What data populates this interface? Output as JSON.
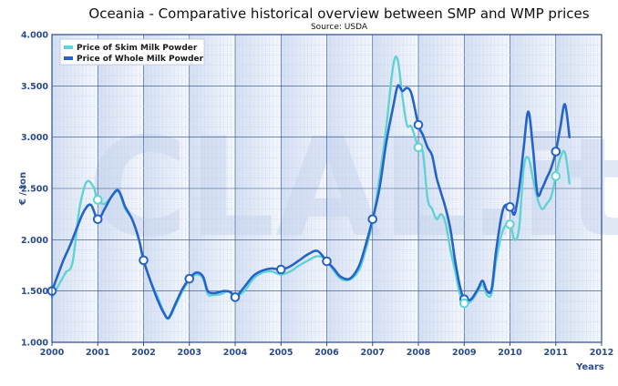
{
  "chart_data": {
    "type": "line",
    "title": "Oceania - Comparative historical overview between SMP and WMP prices",
    "subtitle": "Source: USDA",
    "xlabel": "Years",
    "ylabel": "€ / ton",
    "watermark": "CLAL.it",
    "xlim": [
      2000,
      2012
    ],
    "ylim": [
      1000,
      4000
    ],
    "x_ticks": [
      "2000",
      "2001",
      "2002",
      "2003",
      "2004",
      "2005",
      "2006",
      "2007",
      "2008",
      "2009",
      "2010",
      "2011",
      "2012"
    ],
    "y_ticks": [
      "1.000",
      "1.500",
      "2.000",
      "2.500",
      "3.000",
      "3.500",
      "4.000"
    ],
    "grid": true,
    "legend_position": "top-left",
    "series": [
      {
        "name": "Price of Skim Milk Powder",
        "color": "#5fd3d3",
        "points": [
          [
            2000.0,
            1440
          ],
          [
            2000.15,
            1560
          ],
          [
            2000.3,
            1680
          ],
          [
            2000.45,
            1780
          ],
          [
            2000.6,
            2300
          ],
          [
            2000.75,
            2560
          ],
          [
            2000.9,
            2520
          ],
          [
            2001.0,
            2390
          ],
          [
            2001.15,
            2350
          ],
          [
            2001.3,
            2420
          ],
          [
            2001.45,
            2470
          ],
          [
            2001.6,
            2300
          ],
          [
            2001.75,
            2200
          ],
          [
            2001.9,
            2000
          ],
          [
            2002.0,
            1800
          ],
          [
            2002.15,
            1600
          ],
          [
            2002.3,
            1450
          ],
          [
            2002.45,
            1290
          ],
          [
            2002.55,
            1230
          ],
          [
            2002.7,
            1360
          ],
          [
            2002.85,
            1500
          ],
          [
            2003.0,
            1600
          ],
          [
            2003.15,
            1660
          ],
          [
            2003.3,
            1620
          ],
          [
            2003.4,
            1470
          ],
          [
            2003.5,
            1460
          ],
          [
            2003.7,
            1470
          ],
          [
            2003.85,
            1500
          ],
          [
            2004.0,
            1440
          ],
          [
            2004.2,
            1500
          ],
          [
            2004.4,
            1620
          ],
          [
            2004.6,
            1680
          ],
          [
            2004.8,
            1690
          ],
          [
            2005.0,
            1660
          ],
          [
            2005.2,
            1690
          ],
          [
            2005.4,
            1750
          ],
          [
            2005.6,
            1800
          ],
          [
            2005.8,
            1840
          ],
          [
            2006.0,
            1800
          ],
          [
            2006.15,
            1700
          ],
          [
            2006.3,
            1620
          ],
          [
            2006.5,
            1610
          ],
          [
            2006.7,
            1700
          ],
          [
            2006.85,
            1900
          ],
          [
            2007.0,
            2180
          ],
          [
            2007.15,
            2600
          ],
          [
            2007.3,
            3100
          ],
          [
            2007.45,
            3700
          ],
          [
            2007.55,
            3750
          ],
          [
            2007.65,
            3400
          ],
          [
            2007.75,
            3120
          ],
          [
            2007.85,
            3100
          ],
          [
            2008.0,
            2900
          ],
          [
            2008.1,
            2850
          ],
          [
            2008.2,
            2400
          ],
          [
            2008.3,
            2300
          ],
          [
            2008.4,
            2200
          ],
          [
            2008.5,
            2250
          ],
          [
            2008.6,
            2150
          ],
          [
            2008.7,
            1900
          ],
          [
            2008.8,
            1700
          ],
          [
            2008.9,
            1480
          ],
          [
            2009.0,
            1380
          ],
          [
            2009.15,
            1400
          ],
          [
            2009.3,
            1500
          ],
          [
            2009.4,
            1560
          ],
          [
            2009.5,
            1460
          ],
          [
            2009.6,
            1480
          ],
          [
            2009.7,
            1800
          ],
          [
            2009.85,
            2100
          ],
          [
            2010.0,
            2150
          ],
          [
            2010.1,
            2000
          ],
          [
            2010.2,
            2120
          ],
          [
            2010.3,
            2700
          ],
          [
            2010.4,
            2800
          ],
          [
            2010.5,
            2600
          ],
          [
            2010.6,
            2400
          ],
          [
            2010.7,
            2300
          ],
          [
            2010.8,
            2350
          ],
          [
            2010.9,
            2420
          ],
          [
            2011.0,
            2620
          ],
          [
            2011.1,
            2800
          ],
          [
            2011.2,
            2850
          ],
          [
            2011.3,
            2550
          ]
        ]
      },
      {
        "name": "Price of Whole Milk Powder",
        "color": "#2563c9",
        "points": [
          [
            2000.0,
            1500
          ],
          [
            2000.1,
            1620
          ],
          [
            2000.25,
            1800
          ],
          [
            2000.4,
            1950
          ],
          [
            2000.55,
            2120
          ],
          [
            2000.7,
            2280
          ],
          [
            2000.85,
            2340
          ],
          [
            2001.0,
            2200
          ],
          [
            2001.15,
            2300
          ],
          [
            2001.3,
            2420
          ],
          [
            2001.45,
            2480
          ],
          [
            2001.6,
            2320
          ],
          [
            2001.75,
            2200
          ],
          [
            2001.9,
            2000
          ],
          [
            2002.0,
            1800
          ],
          [
            2002.15,
            1600
          ],
          [
            2002.3,
            1420
          ],
          [
            2002.45,
            1280
          ],
          [
            2002.55,
            1240
          ],
          [
            2002.7,
            1380
          ],
          [
            2002.85,
            1520
          ],
          [
            2003.0,
            1620
          ],
          [
            2003.15,
            1680
          ],
          [
            2003.3,
            1640
          ],
          [
            2003.4,
            1500
          ],
          [
            2003.55,
            1480
          ],
          [
            2003.75,
            1500
          ],
          [
            2003.9,
            1490
          ],
          [
            2004.0,
            1440
          ],
          [
            2004.2,
            1540
          ],
          [
            2004.4,
            1650
          ],
          [
            2004.6,
            1700
          ],
          [
            2004.8,
            1720
          ],
          [
            2005.0,
            1710
          ],
          [
            2005.2,
            1740
          ],
          [
            2005.4,
            1800
          ],
          [
            2005.6,
            1860
          ],
          [
            2005.8,
            1890
          ],
          [
            2006.0,
            1790
          ],
          [
            2006.15,
            1720
          ],
          [
            2006.3,
            1640
          ],
          [
            2006.5,
            1620
          ],
          [
            2006.7,
            1740
          ],
          [
            2006.85,
            1950
          ],
          [
            2007.0,
            2200
          ],
          [
            2007.15,
            2500
          ],
          [
            2007.3,
            2950
          ],
          [
            2007.45,
            3300
          ],
          [
            2007.55,
            3500
          ],
          [
            2007.65,
            3450
          ],
          [
            2007.75,
            3480
          ],
          [
            2007.85,
            3420
          ],
          [
            2008.0,
            3120
          ],
          [
            2008.1,
            3020
          ],
          [
            2008.2,
            2900
          ],
          [
            2008.3,
            2820
          ],
          [
            2008.4,
            2600
          ],
          [
            2008.5,
            2450
          ],
          [
            2008.6,
            2300
          ],
          [
            2008.7,
            2100
          ],
          [
            2008.8,
            1800
          ],
          [
            2008.9,
            1560
          ],
          [
            2009.0,
            1420
          ],
          [
            2009.15,
            1420
          ],
          [
            2009.3,
            1520
          ],
          [
            2009.4,
            1600
          ],
          [
            2009.5,
            1500
          ],
          [
            2009.6,
            1520
          ],
          [
            2009.7,
            1900
          ],
          [
            2009.85,
            2300
          ],
          [
            2010.0,
            2320
          ],
          [
            2010.1,
            2250
          ],
          [
            2010.2,
            2500
          ],
          [
            2010.3,
            2900
          ],
          [
            2010.4,
            3250
          ],
          [
            2010.5,
            2900
          ],
          [
            2010.6,
            2450
          ],
          [
            2010.7,
            2500
          ],
          [
            2010.8,
            2600
          ],
          [
            2010.9,
            2700
          ],
          [
            2011.0,
            2860
          ],
          [
            2011.1,
            3100
          ],
          [
            2011.2,
            3320
          ],
          [
            2011.3,
            3000
          ]
        ]
      }
    ],
    "markers": [
      {
        "series": 1,
        "points": [
          [
            2000.0,
            1500
          ],
          [
            2001.0,
            2200
          ],
          [
            2002.0,
            1800
          ],
          [
            2003.0,
            1620
          ],
          [
            2004.0,
            1440
          ],
          [
            2005.0,
            1710
          ],
          [
            2006.0,
            1790
          ],
          [
            2007.0,
            2200
          ],
          [
            2008.0,
            3120
          ],
          [
            2009.0,
            1420
          ],
          [
            2010.0,
            2320
          ],
          [
            2011.0,
            2860
          ]
        ]
      },
      {
        "series": 0,
        "points": [
          [
            2001.0,
            2390
          ],
          [
            2008.0,
            2900
          ],
          [
            2009.0,
            1380
          ],
          [
            2010.0,
            2150
          ],
          [
            2011.0,
            2620
          ]
        ]
      }
    ]
  }
}
